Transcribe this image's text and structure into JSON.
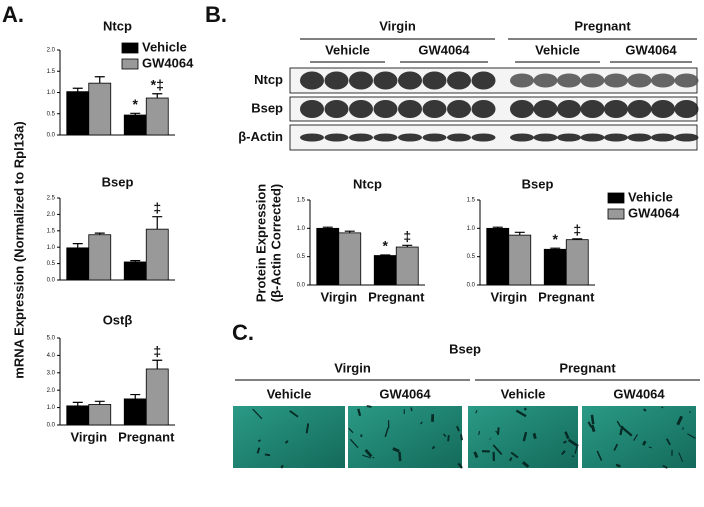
{
  "panel_labels": [
    "A.",
    "B.",
    "C."
  ],
  "panel_a": {
    "ylabel": "mRNA Expression (Normalized to Rpl13a)"
  },
  "panel_b": {
    "ylabel": [
      "Protein Expression",
      "(β-Actin Corrected)"
    ],
    "blot": {
      "groups": [
        "Virgin",
        "Pregnant"
      ],
      "treatments": [
        "Vehicle",
        "GW4064",
        "Vehicle",
        "GW4064"
      ],
      "rows": [
        "Ntcp",
        "Bsep",
        "β-Actin"
      ]
    }
  },
  "panel_c": {
    "title": "Bsep",
    "groups": [
      "Virgin",
      "Pregnant"
    ],
    "treatments": [
      "Vehicle",
      "GW4064",
      "Vehicle",
      "GW4064"
    ]
  },
  "chart_data": [
    {
      "type": "bar",
      "title": "Ntcp",
      "categories": [
        null,
        null
      ],
      "ylim": [
        0,
        2
      ],
      "yticks": [
        {
          "value": 0,
          "label": "0.0"
        },
        0.5,
        {
          "value": 1,
          "label": "1.0"
        },
        1.5,
        {
          "value": 2,
          "label": "2.0"
        }
      ],
      "series": [
        {
          "name": "Vehicle",
          "color": "#000000",
          "values": [
            1.02,
            0.47
          ],
          "errors": [
            0.08,
            0.04
          ],
          "significance": [
            null,
            "*"
          ]
        },
        {
          "name": "GW4064",
          "color": "#999999",
          "values": [
            1.22,
            0.87
          ],
          "errors": [
            0.15,
            0.1
          ],
          "significance": [
            null,
            "*‡"
          ]
        }
      ]
    },
    {
      "type": "bar",
      "title": "Bsep",
      "categories": [
        null,
        null
      ],
      "ylim": [
        0,
        2.5
      ],
      "yticks": [
        {
          "value": 0,
          "label": "0.0"
        },
        0.5,
        {
          "value": 1,
          "label": "1.0"
        },
        1.5,
        {
          "value": 2,
          "label": "2.0"
        },
        2.5
      ],
      "series": [
        {
          "name": "Vehicle",
          "color": "#000000",
          "values": [
            0.98,
            0.55
          ],
          "errors": [
            0.13,
            0.04
          ],
          "significance": [
            null,
            null
          ]
        },
        {
          "name": "GW4064",
          "color": "#999999",
          "values": [
            1.38,
            1.55
          ],
          "errors": [
            0.05,
            0.38
          ],
          "significance": [
            null,
            "‡"
          ]
        }
      ]
    },
    {
      "type": "bar",
      "title": "Ostβ",
      "categories": [
        "Virgin",
        "Pregnant"
      ],
      "ylim": [
        0,
        5
      ],
      "yticks": [
        {
          "value": 0,
          "label": "0.0"
        },
        {
          "value": 1,
          "label": "1.0"
        },
        {
          "value": 2,
          "label": "2.0"
        },
        {
          "value": 3,
          "label": "3.0"
        },
        {
          "value": 4,
          "label": "4.0"
        },
        {
          "value": 5,
          "label": "5.0"
        }
      ],
      "series": [
        {
          "name": "Vehicle",
          "color": "#000000",
          "values": [
            1.1,
            1.5
          ],
          "errors": [
            0.2,
            0.25
          ],
          "significance": [
            null,
            null
          ]
        },
        {
          "name": "GW4064",
          "color": "#999999",
          "values": [
            1.18,
            3.22
          ],
          "errors": [
            0.18,
            0.5
          ],
          "significance": [
            null,
            "‡"
          ]
        }
      ]
    },
    {
      "type": "bar",
      "title": "Ntcp",
      "categories": [
        "Virgin",
        "Pregnant"
      ],
      "ylim": [
        0,
        1.5
      ],
      "yticks": [
        {
          "value": 0,
          "label": "0.0"
        },
        0.5,
        {
          "value": 1,
          "label": "1.0"
        },
        1.5
      ],
      "series": [
        {
          "name": "Vehicle",
          "color": "#000000",
          "values": [
            1.0,
            0.52
          ],
          "errors": [
            0.02,
            0.01
          ],
          "significance": [
            null,
            "*"
          ]
        },
        {
          "name": "GW4064",
          "color": "#999999",
          "values": [
            0.92,
            0.67
          ],
          "errors": [
            0.03,
            0.03
          ],
          "significance": [
            null,
            "‡"
          ]
        }
      ]
    },
    {
      "type": "bar",
      "title": "Bsep",
      "categories": [
        "Virgin",
        "Pregnant"
      ],
      "ylim": [
        0,
        1.5
      ],
      "yticks": [
        {
          "value": 0,
          "label": "0.0"
        },
        0.5,
        {
          "value": 1,
          "label": "1.0"
        },
        1.5
      ],
      "series": [
        {
          "name": "Vehicle",
          "color": "#000000",
          "values": [
            1.0,
            0.63
          ],
          "errors": [
            0.02,
            0.02
          ],
          "significance": [
            null,
            "*"
          ]
        },
        {
          "name": "GW4064",
          "color": "#999999",
          "values": [
            0.88,
            0.8
          ],
          "errors": [
            0.05,
            0.015
          ],
          "significance": [
            null,
            "‡"
          ]
        }
      ]
    }
  ]
}
